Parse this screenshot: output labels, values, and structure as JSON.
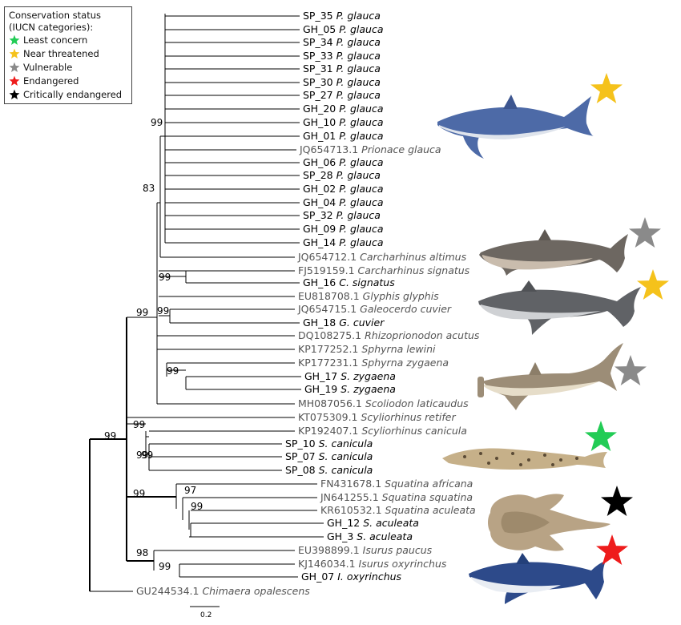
{
  "legend": {
    "title_line1": "Conservation status",
    "title_line2": "(IUCN categories):",
    "items": [
      {
        "label": "Least concern",
        "color": "#22cc55"
      },
      {
        "label": "Near threatened",
        "color": "#f5c21b"
      },
      {
        "label": "Vulnerable",
        "color": "#8a8a8a"
      },
      {
        "label": "Endangered",
        "color": "#ee1c1c"
      },
      {
        "label": "Critically endangered",
        "color": "#000000"
      }
    ]
  },
  "taxa": [
    {
      "id": "SP_35",
      "species": "P. glauca",
      "type": "sample"
    },
    {
      "id": "GH_05",
      "species": "P. glauca",
      "type": "sample"
    },
    {
      "id": "SP_34",
      "species": "P. glauca",
      "type": "sample"
    },
    {
      "id": "SP_33",
      "species": "P. glauca",
      "type": "sample"
    },
    {
      "id": "SP_31",
      "species": "P. glauca",
      "type": "sample"
    },
    {
      "id": "SP_30",
      "species": "P. glauca",
      "type": "sample"
    },
    {
      "id": "SP_27",
      "species": "P. glauca",
      "type": "sample"
    },
    {
      "id": "GH_20",
      "species": "P. glauca",
      "type": "sample"
    },
    {
      "id": "GH_10",
      "species": "P. glauca",
      "type": "sample"
    },
    {
      "id": "GH_01",
      "species": "P. glauca",
      "type": "sample"
    },
    {
      "id": "JQ654713.1",
      "species": "Prionace glauca",
      "type": "ref"
    },
    {
      "id": "GH_06",
      "species": "P. glauca",
      "type": "sample"
    },
    {
      "id": "SP_28",
      "species": "P. glauca",
      "type": "sample"
    },
    {
      "id": "GH_02",
      "species": "P. glauca",
      "type": "sample"
    },
    {
      "id": "GH_04",
      "species": "P. glauca",
      "type": "sample"
    },
    {
      "id": "SP_32",
      "species": "P. glauca",
      "type": "sample"
    },
    {
      "id": "GH_09",
      "species": "P. glauca",
      "type": "sample"
    },
    {
      "id": "GH_14",
      "species": "P. glauca",
      "type": "sample"
    },
    {
      "id": "JQ654712.1",
      "species": "Carcharhinus altimus",
      "type": "ref"
    },
    {
      "id": "FJ519159.1",
      "species": "Carcharhinus signatus",
      "type": "ref"
    },
    {
      "id": "GH_16",
      "species": "C. signatus",
      "type": "sample"
    },
    {
      "id": "EU818708.1",
      "species": "Glyphis glyphis",
      "type": "ref"
    },
    {
      "id": "JQ654715.1",
      "species": "Galeocerdo cuvier",
      "type": "ref"
    },
    {
      "id": "GH_18",
      "species": "G. cuvier",
      "type": "sample"
    },
    {
      "id": "DQ108275.1",
      "species": "Rhizoprionodon acutus",
      "type": "ref"
    },
    {
      "id": "KP177252.1",
      "species": "Sphyrna lewini",
      "type": "ref"
    },
    {
      "id": "KP177231.1",
      "species": "Sphyrna zygaena",
      "type": "ref"
    },
    {
      "id": "GH_17",
      "species": "S. zygaena",
      "type": "sample"
    },
    {
      "id": "GH_19",
      "species": "S. zygaena",
      "type": "sample"
    },
    {
      "id": "MH087056.1",
      "species": "Scoliodon laticaudus",
      "type": "ref"
    },
    {
      "id": "KT075309.1",
      "species": "Scyliorhinus retifer",
      "type": "ref"
    },
    {
      "id": "KP192407.1",
      "species": "Scyliorhinus canicula",
      "type": "ref"
    },
    {
      "id": "SP_10",
      "species": "S. canicula",
      "type": "sample"
    },
    {
      "id": "SP_07",
      "species": "S. canicula",
      "type": "sample"
    },
    {
      "id": "SP_08",
      "species": "S. canicula",
      "type": "sample"
    },
    {
      "id": "FN431678.1",
      "species": "Squatina africana",
      "type": "ref"
    },
    {
      "id": "JN641255.1",
      "species": "Squatina squatina",
      "type": "ref"
    },
    {
      "id": "KR610532.1",
      "species": "Squatina aculeata",
      "type": "ref"
    },
    {
      "id": "GH_12",
      "species": "S. aculeata",
      "type": "sample"
    },
    {
      "id": "GH_3",
      "species": "S. aculeata",
      "type": "sample"
    },
    {
      "id": "EU398899.1",
      "species": "Isurus paucus",
      "type": "ref"
    },
    {
      "id": "KJ146034.1",
      "species": "Isurus oxyrinchus",
      "type": "ref"
    },
    {
      "id": "GH_07",
      "species": "I. oxyrinchus",
      "type": "sample"
    },
    {
      "id": "GU244534.1",
      "species": "Chimaera opalescens",
      "type": "ref"
    }
  ],
  "bootstrap": [
    "99",
    "83",
    "99",
    "99",
    "99",
    "99",
    "99",
    "99",
    "99",
    "99",
    "97",
    "99",
    "98",
    "99",
    "99"
  ],
  "scale_bar": "0.2",
  "illustrations": [
    {
      "name": "blue-shark",
      "status": "Near threatened"
    },
    {
      "name": "bignose-shark",
      "status": "Vulnerable"
    },
    {
      "name": "tiger-shark",
      "status": "Near threatened"
    },
    {
      "name": "hammerhead-shark",
      "status": "Vulnerable"
    },
    {
      "name": "catshark",
      "status": "Least concern"
    },
    {
      "name": "angel-shark",
      "status": "Critically endangered"
    },
    {
      "name": "mako-shark",
      "status": "Endangered"
    }
  ]
}
